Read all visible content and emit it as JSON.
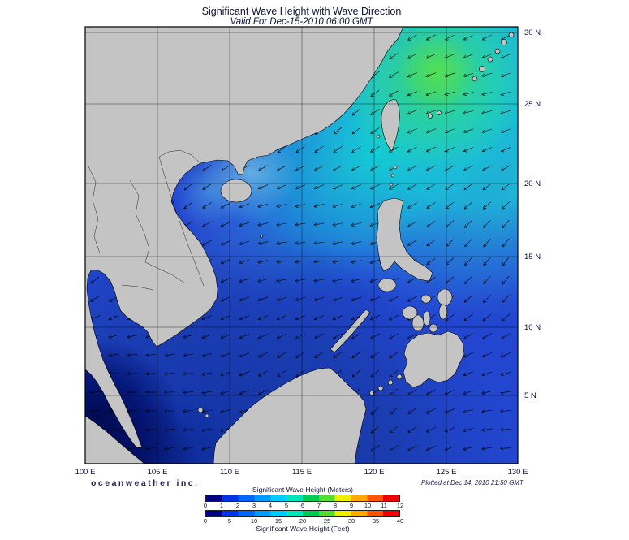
{
  "header": {
    "title": "Significant Wave Height with Wave Direction",
    "subtitle": "Valid For Dec-15-2010 06:00 GMT"
  },
  "footer": {
    "branding": "oceanweather inc.",
    "plotted": "Plotted at Dec 14, 2010 21:50 GMT"
  },
  "axes": {
    "lon_ticks": [
      "100 E",
      "105 E",
      "110 E",
      "115 E",
      "120 E",
      "125 E",
      "130 E"
    ],
    "lat_ticks": [
      "30 N",
      "25 N",
      "20 N",
      "15 N",
      "10 N",
      "5 N"
    ]
  },
  "legend": {
    "meters_label": "Significant Wave Height (Meters)",
    "feet_label": "Significant Wave Height (Feet)",
    "meters_ticks": [
      "0",
      "1",
      "2",
      "3",
      "4",
      "5",
      "6",
      "7",
      "8",
      "9",
      "10",
      "11",
      "12"
    ],
    "feet_ticks": [
      "0",
      "5",
      "10",
      "15",
      "20",
      "25",
      "30",
      "35",
      "40"
    ],
    "feet_max": 40,
    "colors": [
      "#000080",
      "#0033e6",
      "#0066ff",
      "#0099ff",
      "#00ccff",
      "#00e6b8",
      "#00cc55",
      "#55dd33",
      "#eeee00",
      "#ffaa00",
      "#ff5500",
      "#ee0000"
    ]
  },
  "map": {
    "colors": {
      "land": "#c4c4c4",
      "ocean_base": "#2246cf",
      "high_wave_region": "#3ed469",
      "low_wave_region": "#000a55"
    },
    "arrow_symbol": "wave-direction-arrow"
  }
}
